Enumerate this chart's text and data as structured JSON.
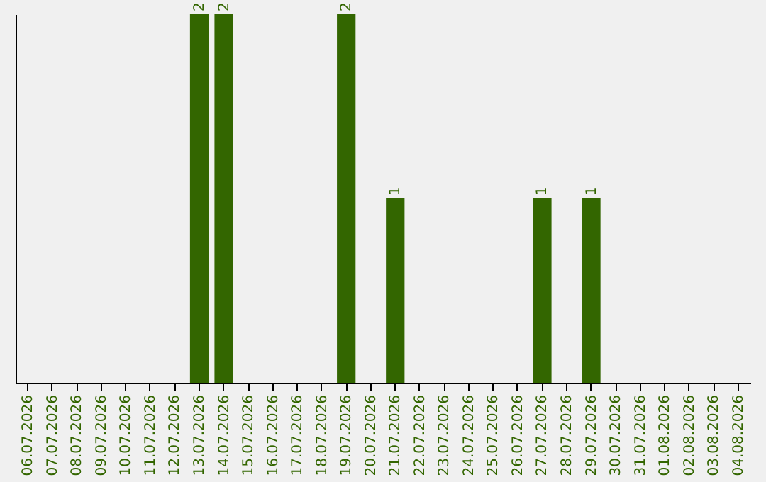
{
  "chart_data": {
    "type": "bar",
    "categories": [
      "06.07.2026",
      "07.07.2026",
      "08.07.2026",
      "09.07.2026",
      "10.07.2026",
      "11.07.2026",
      "12.07.2026",
      "13.07.2026",
      "14.07.2026",
      "15.07.2026",
      "16.07.2026",
      "17.07.2026",
      "18.07.2026",
      "19.07.2026",
      "20.07.2026",
      "21.07.2026",
      "22.07.2026",
      "23.07.2026",
      "24.07.2026",
      "25.07.2026",
      "26.07.2026",
      "27.07.2026",
      "28.07.2026",
      "29.07.2026",
      "30.07.2026",
      "31.07.2026",
      "01.08.2026",
      "02.08.2026",
      "03.08.2026",
      "04.08.2026"
    ],
    "values": [
      0,
      0,
      0,
      0,
      0,
      0,
      0,
      2,
      2,
      0,
      0,
      0,
      0,
      2,
      0,
      1,
      0,
      0,
      0,
      0,
      0,
      1,
      0,
      1,
      0,
      0,
      0,
      0,
      0,
      0
    ],
    "color": "#336600",
    "value_labels": [
      null,
      null,
      null,
      null,
      null,
      null,
      null,
      "2",
      "2",
      null,
      null,
      null,
      null,
      "2",
      null,
      "1",
      null,
      null,
      null,
      null,
      null,
      "1",
      null,
      "1",
      null,
      null,
      null,
      null,
      null,
      null
    ],
    "tick_labels": "x"
  }
}
